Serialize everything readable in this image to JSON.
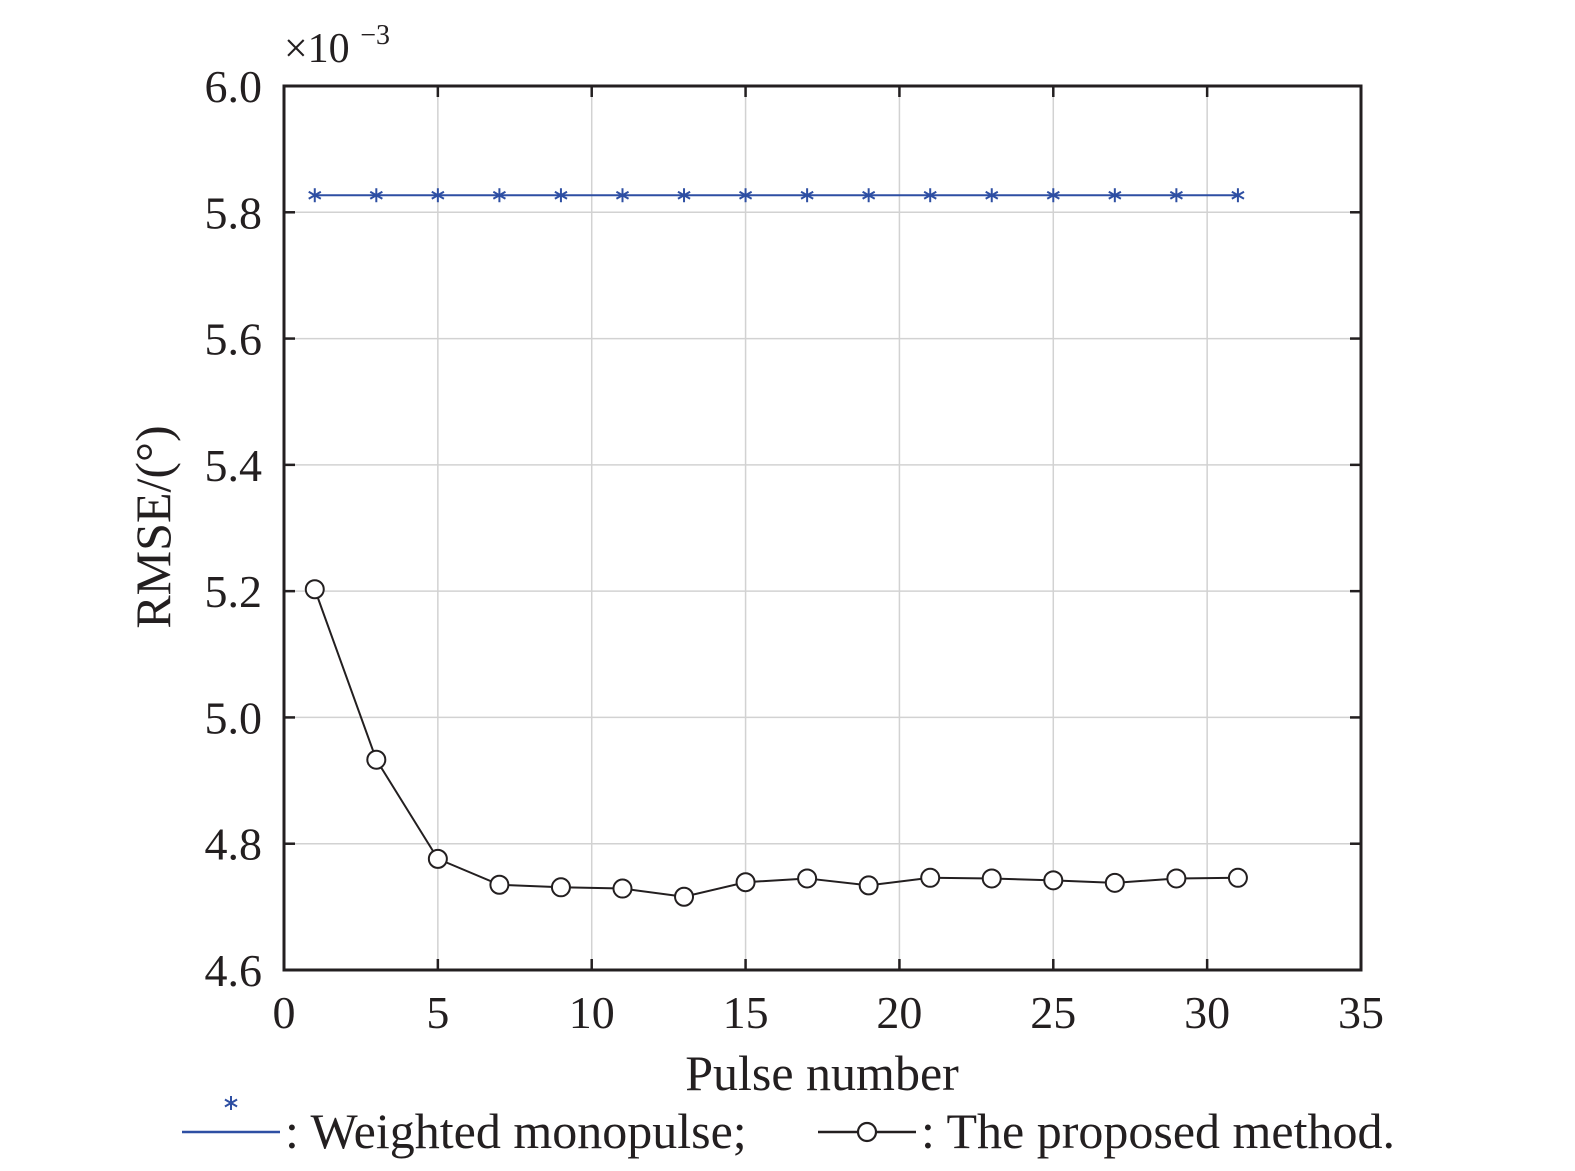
{
  "chart_data": {
    "type": "line",
    "xlabel": "Pulse number",
    "ylabel": "RMSE/(°)",
    "y_multiplier": {
      "base": "×10",
      "exponent": "−3"
    },
    "xlim": [
      0,
      35
    ],
    "ylim": [
      4.6,
      6.0
    ],
    "xticks": [
      0,
      5,
      10,
      15,
      20,
      25,
      30,
      35
    ],
    "yticks": [
      4.6,
      4.8,
      5.0,
      5.2,
      5.4,
      5.6,
      5.8,
      6.0
    ],
    "xtick_labels": [
      "0",
      "5",
      "10",
      "15",
      "20",
      "25",
      "30",
      "35"
    ],
    "ytick_labels": [
      "4.6",
      "4.8",
      "5.0",
      "5.2",
      "5.4",
      "5.6",
      "5.8",
      "6.0"
    ],
    "grid": true,
    "legend_position": "bottom",
    "x": [
      1,
      3,
      5,
      7,
      9,
      11,
      13,
      15,
      17,
      19,
      21,
      23,
      25,
      27,
      29,
      31
    ],
    "series": [
      {
        "legend_label": ": Weighted monopulse;",
        "marker": "asterisk",
        "color": "#2e4fa3",
        "values": [
          5.827,
          5.827,
          5.827,
          5.827,
          5.827,
          5.827,
          5.827,
          5.827,
          5.827,
          5.827,
          5.827,
          5.827,
          5.827,
          5.827,
          5.827,
          5.827
        ]
      },
      {
        "legend_label": ": The proposed method.",
        "marker": "circle",
        "color": "#231f20",
        "values": [
          5.203,
          4.933,
          4.776,
          4.735,
          4.731,
          4.729,
          4.716,
          4.739,
          4.745,
          4.734,
          4.746,
          4.745,
          4.742,
          4.738,
          4.745,
          4.746
        ]
      }
    ]
  }
}
